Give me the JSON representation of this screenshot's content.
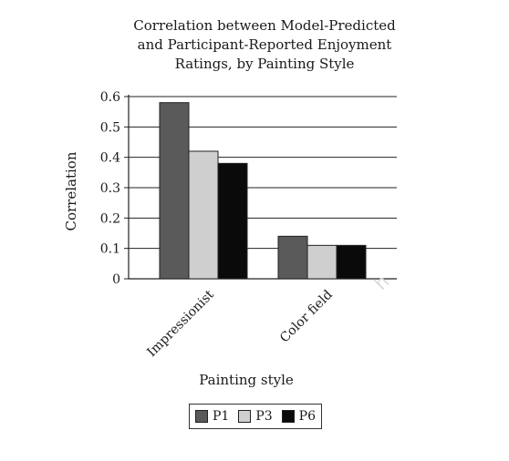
{
  "chart_data": {
    "type": "bar",
    "title_lines": [
      "Correlation between Model-Predicted",
      "and Participant-Reported Enjoyment",
      "Ratings, by Painting Style"
    ],
    "xlabel": "Painting style",
    "ylabel": "Correlation",
    "categories": [
      "Impressionist",
      "Color field"
    ],
    "series": [
      {
        "name": "P1",
        "values": [
          0.58,
          0.14
        ],
        "color": "#5a5a5a"
      },
      {
        "name": "P3",
        "values": [
          0.42,
          0.11
        ],
        "color": "#cfcfcf"
      },
      {
        "name": "P6",
        "values": [
          0.38,
          0.11
        ],
        "color": "#0a0a0a"
      }
    ],
    "ylim": [
      0,
      0.6
    ],
    "yticks": [
      "0",
      "0.1",
      "0.2",
      "0.3",
      "0.4",
      "0.5",
      "0.6"
    ],
    "grid": true,
    "legend_position": "bottom"
  }
}
